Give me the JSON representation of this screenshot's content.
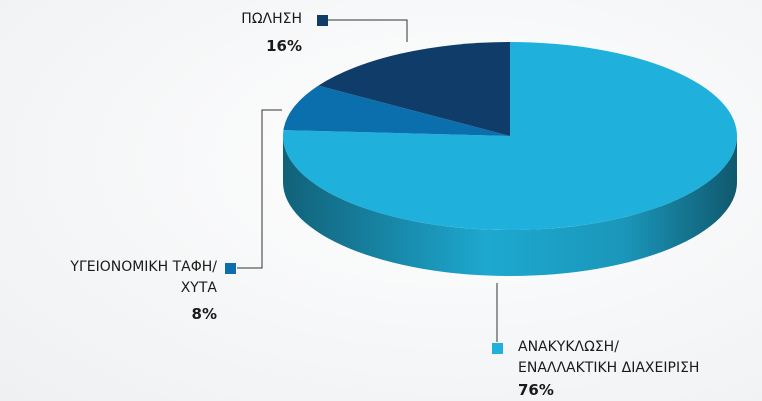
{
  "chart_data": {
    "type": "pie3d",
    "categories": [
      "ΑΝΑΚΥΚΛΩΣΗ/\nΕΝΑΛΛΑΚΤΙΚΗ ΔΙΑΧΕΙΡΙΣΗ",
      "ΥΓΕΙΟΝΟΜΙΚΗ ΤΑΦΗ/\nΧΥΤΑ",
      "ΠΩΛΗΣΗ"
    ],
    "values": [
      76,
      8,
      16
    ],
    "value_labels": [
      "76%",
      "8%",
      "16%"
    ],
    "colors": [
      "#1fb1db",
      "#0b6fae",
      "#0f3c69"
    ]
  }
}
